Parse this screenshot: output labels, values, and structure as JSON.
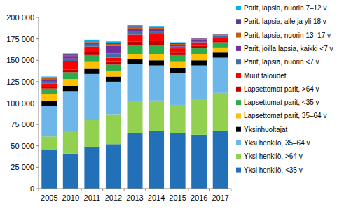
{
  "chart_data": {
    "type": "bar",
    "stacked": true,
    "grid": false,
    "legend": "right",
    "categories": [
      "2005",
      "2010",
      "2011",
      "2012",
      "2013",
      "2014",
      "2015",
      "2016",
      "2017"
    ],
    "ylim": [
      0,
      200000
    ],
    "yticks": [
      0,
      {
        "value": 25000,
        "label": "25 000"
      },
      {
        "value": 50000,
        "label": "50 000"
      },
      {
        "value": 75000,
        "label": "75 000"
      },
      {
        "value": 100000,
        "label": "100 000"
      },
      {
        "value": 125000,
        "label": "125 000"
      },
      {
        "value": 150000,
        "label": "150 000"
      },
      {
        "value": 175000,
        "label": "175 000"
      },
      {
        "value": 200000,
        "label": "200 000"
      }
    ],
    "series": [
      {
        "name": "Yksi henkilö, <35 v",
        "color": "#2270b8",
        "values": [
          45000,
          41000,
          49000,
          52000,
          65000,
          67000,
          65000,
          63000,
          67000
        ]
      },
      {
        "name": "Yksi henkilö, >64 v",
        "color": "#92d050",
        "values": [
          16000,
          26000,
          31000,
          35000,
          37000,
          36000,
          33000,
          42000,
          45000
        ]
      },
      {
        "name": "Yksi henkilö, 35–64 v",
        "color": "#6db6ea",
        "values": [
          36000,
          47000,
          54000,
          38000,
          44000,
          41000,
          37000,
          39000,
          41000
        ]
      },
      {
        "name": "Yksinhuoltajat",
        "color": "#000000",
        "values": [
          6000,
          6000,
          6000,
          6000,
          5000,
          6000,
          6000,
          6000,
          6000
        ]
      },
      {
        "name": "Lapsettomat parit, 35–64 v",
        "color": "#ffc000",
        "values": [
          8000,
          8000,
          8000,
          7000,
          6000,
          7000,
          7000,
          7000,
          6000
        ]
      },
      {
        "name": "Lapsettomat parit, <35 v",
        "color": "#2cab4a",
        "values": [
          6000,
          8000,
          8000,
          7000,
          10000,
          11000,
          8000,
          7000,
          6000
        ]
      },
      {
        "name": "Lapsettomat parit,  >64 v",
        "color": "#c00000",
        "values": [
          2000,
          3000,
          4000,
          3000,
          5000,
          5000,
          3000,
          3000,
          2000
        ]
      },
      {
        "name": "Muut taloudet",
        "color": "#ff0000",
        "values": [
          4000,
          10000,
          6000,
          5000,
          8000,
          8000,
          5000,
          4000,
          3000
        ]
      },
      {
        "name": "Parit, lapsia, nuorin <7 v",
        "color": "#3c6ea8",
        "values": [
          2000,
          3000,
          3000,
          5000,
          3000,
          2000,
          2000,
          2000,
          2000
        ]
      },
      {
        "name": "Parit, joilla lapsia, kaikki <7 v",
        "color": "#7030a0",
        "values": [
          3000,
          3000,
          2000,
          9000,
          4000,
          4000,
          2000,
          1000,
          1000
        ]
      },
      {
        "name": "Parit, lapsia, nuorin 13–17 v",
        "color": "#c55a11",
        "values": [
          1000,
          1000,
          1000,
          2000,
          2000,
          1000,
          1000,
          1000,
          1000
        ]
      },
      {
        "name": "Parit, lapsia, alle ja yli 18 v",
        "color": "#5a3a8a",
        "values": [
          1000,
          1000,
          1000,
          1000,
          1000,
          1000,
          1000,
          1000,
          1000
        ]
      },
      {
        "name": "Parit, lapsia, nuorin 7–12 v",
        "color": "#00b0f0",
        "values": [
          1000,
          1000,
          1000,
          2000,
          1000,
          1000,
          1000,
          0,
          0
        ]
      }
    ]
  }
}
